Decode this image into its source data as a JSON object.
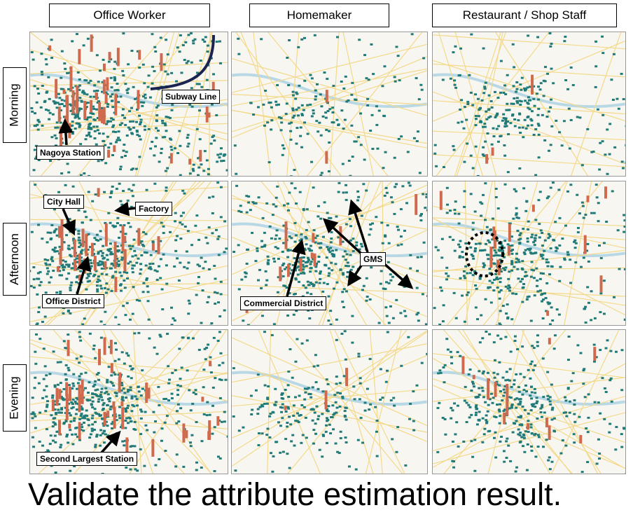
{
  "columns": [
    "Office Worker",
    "Homemaker",
    "Restaurant / Shop Staff"
  ],
  "rows": [
    "Morning",
    "Afternoon",
    "Evening"
  ],
  "annotations": {
    "subway_line": "Subway Line",
    "nagoya_station": "Nagoya Station",
    "city_hall": "City Hall",
    "factory": "Factory",
    "office_district": "Office District",
    "gms": "GMS",
    "commercial_district": "Commercial District",
    "second_largest_station": "Second Largest Station"
  },
  "colors": {
    "grid": "#1f7a78",
    "bar": "#d06a4e",
    "map_bg": "#f8f6f0",
    "road": "#f3d98a",
    "water": "#b9d8e6",
    "subway": "#1b2450"
  },
  "caption": "Validate the attribute estimation result."
}
